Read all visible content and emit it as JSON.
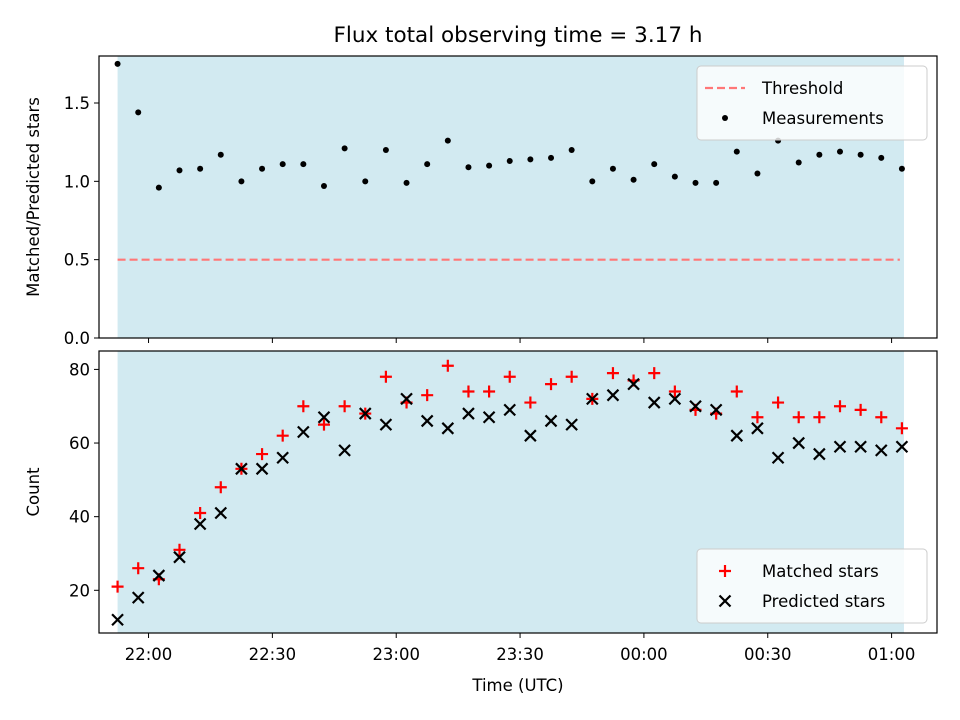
{
  "title": "Flux total observing time = 3.17 h",
  "chart_data": [
    {
      "type": "scatter",
      "ylabel": "Matched/Predicted stars",
      "xlim": [
        -9,
        397
      ],
      "ylim": [
        0,
        1.8
      ],
      "yticks": [
        0.0,
        0.5,
        1.0,
        1.5
      ],
      "ytick_labels": [
        "0.0",
        "0.5",
        "1.0",
        "1.5"
      ],
      "shaded_span": [
        0,
        381
      ],
      "shade_color": "#add8e6",
      "legend_position": "upper right",
      "threshold": {
        "name": "Threshold",
        "value": 0.5,
        "x_range": [
          0,
          379
        ],
        "color": "#ff7777",
        "style": "dashed"
      },
      "series": [
        {
          "name": "Measurements",
          "marker": "dot",
          "color": "#000000",
          "x": [
            0,
            10,
            20,
            30,
            40,
            50,
            60,
            70,
            80,
            90,
            100,
            110,
            120,
            130,
            140,
            150,
            160,
            170,
            180,
            190,
            200,
            210,
            220,
            230,
            240,
            250,
            260,
            270,
            280,
            290,
            300,
            310,
            320,
            330,
            340,
            350,
            360,
            370,
            380
          ],
          "y": [
            1.75,
            1.44,
            0.96,
            1.07,
            1.08,
            1.17,
            1.0,
            1.08,
            1.11,
            1.11,
            0.97,
            1.21,
            1.0,
            1.2,
            0.99,
            1.11,
            1.26,
            1.09,
            1.1,
            1.13,
            1.14,
            1.15,
            1.2,
            1.0,
            1.08,
            1.01,
            1.11,
            1.03,
            0.99,
            0.99,
            1.19,
            1.05,
            1.26,
            1.12,
            1.17,
            1.19,
            1.17,
            1.15,
            1.08
          ]
        }
      ]
    },
    {
      "type": "scatter",
      "xlabel": "Time (UTC)",
      "ylabel": "Count",
      "xlim": [
        -9,
        397
      ],
      "ylim": [
        8.4,
        85
      ],
      "yticks": [
        20,
        40,
        60,
        80
      ],
      "ytick_labels": [
        "20",
        "40",
        "60",
        "80"
      ],
      "xticks": [
        15,
        75,
        135,
        195,
        255,
        315,
        375
      ],
      "xtick_labels": [
        "22:00",
        "22:30",
        "23:00",
        "23:30",
        "00:00",
        "00:30",
        "01:00"
      ],
      "shaded_span": [
        0,
        381
      ],
      "shade_color": "#add8e6",
      "legend_position": "lower right",
      "series": [
        {
          "name": "Matched stars",
          "marker": "plus",
          "color": "#ff0000",
          "x": [
            0,
            10,
            20,
            30,
            40,
            50,
            60,
            70,
            80,
            90,
            100,
            110,
            120,
            130,
            140,
            150,
            160,
            170,
            180,
            190,
            200,
            210,
            220,
            230,
            240,
            250,
            260,
            270,
            280,
            290,
            300,
            310,
            320,
            330,
            340,
            350,
            360,
            370,
            380
          ],
          "y": [
            21,
            26,
            23,
            31,
            41,
            48,
            53,
            57,
            62,
            70,
            65,
            70,
            68,
            78,
            71,
            73,
            81,
            74,
            74,
            78,
            71,
            76,
            78,
            72,
            79,
            77,
            79,
            74,
            69,
            68,
            74,
            67,
            71,
            67,
            67,
            70,
            69,
            67,
            64
          ]
        },
        {
          "name": "Predicted stars",
          "marker": "x",
          "color": "#000000",
          "x": [
            0,
            10,
            20,
            30,
            40,
            50,
            60,
            70,
            80,
            90,
            100,
            110,
            120,
            130,
            140,
            150,
            160,
            170,
            180,
            190,
            200,
            210,
            220,
            230,
            240,
            250,
            260,
            270,
            280,
            290,
            300,
            310,
            320,
            330,
            340,
            350,
            360,
            370,
            380
          ],
          "y": [
            12,
            18,
            24,
            29,
            38,
            41,
            53,
            53,
            56,
            63,
            67,
            58,
            68,
            65,
            72,
            66,
            64,
            68,
            67,
            69,
            62,
            66,
            65,
            72,
            73,
            76,
            71,
            72,
            70,
            69,
            62,
            64,
            56,
            60,
            57,
            59,
            59,
            58,
            59
          ]
        }
      ]
    }
  ]
}
